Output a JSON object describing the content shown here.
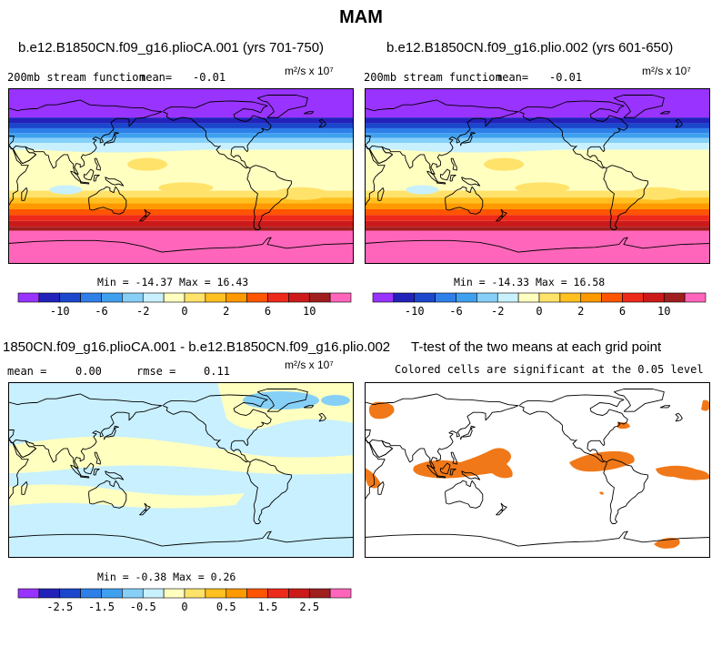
{
  "title": "MAM",
  "chart_data": [
    {
      "type": "heatmap",
      "title": "b.e12.B1850CN.f09_g16.plioCA.001 (yrs 701-750)",
      "variable": "200mb stream function",
      "mean_label": "mean=",
      "mean_value": "-0.01",
      "units": "m²/s x 10⁷",
      "min_max": "Min = -14.37 Max =  16.43",
      "colorbar_ticks": [
        "-10",
        "-6",
        "-2",
        "0",
        "2",
        "6",
        "10"
      ],
      "colors": [
        "#9933ff",
        "#2222bb",
        "#1a47cc",
        "#2f7fe8",
        "#40a0f0",
        "#86d0f8",
        "#c8f0ff",
        "#ffffc0",
        "#ffe26a",
        "#ffc020",
        "#ff9900",
        "#ff5500",
        "#ee2a1a",
        "#cc1a1a",
        "#a01e1e",
        "#ff66bb"
      ],
      "pattern": "climatology"
    },
    {
      "type": "heatmap",
      "title": "b.e12.B1850CN.f09_g16.plio.002 (yrs 601-650)",
      "variable": "200mb stream function",
      "mean_label": "mean=",
      "mean_value": "-0.01",
      "units": "m²/s x 10⁷",
      "min_max": "Min = -14.33 Max =  16.58",
      "colorbar_ticks": [
        "-10",
        "-6",
        "-2",
        "0",
        "2",
        "6",
        "10"
      ],
      "colors": [
        "#9933ff",
        "#2222bb",
        "#1a47cc",
        "#2f7fe8",
        "#40a0f0",
        "#86d0f8",
        "#c8f0ff",
        "#ffffc0",
        "#ffe26a",
        "#ffc020",
        "#ff9900",
        "#ff5500",
        "#ee2a1a",
        "#cc1a1a",
        "#a01e1e",
        "#ff66bb"
      ],
      "pattern": "climatology"
    },
    {
      "type": "heatmap",
      "title": "1850CN.f09_g16.plioCA.001 - b.e12.B1850CN.f09_g16.plio.002",
      "mean_label": "mean =",
      "mean_value": "0.00",
      "rmse_label": "rmse =",
      "rmse_value": "0.11",
      "units": "m²/s x 10⁷",
      "min_max": "Min = -0.38 Max =  0.26",
      "colorbar_ticks": [
        "-2.5",
        "-1.5",
        "-0.5",
        "0",
        "0.5",
        "1.5",
        "2.5"
      ],
      "colors": [
        "#9933ff",
        "#2222bb",
        "#1a47cc",
        "#2f7fe8",
        "#40a0f0",
        "#86d0f8",
        "#c8f0ff",
        "#ffffc0",
        "#ffe26a",
        "#ffc020",
        "#ff9900",
        "#ff5500",
        "#ee2a1a",
        "#cc1a1a",
        "#a01e1e",
        "#ff66bb"
      ],
      "pattern": "difference"
    },
    {
      "type": "heatmap",
      "title": "T-test of the two means at each grid point",
      "subtitle": "Colored cells are significant at the 0.05 level",
      "significance_color": "#f07818",
      "pattern": "ttest"
    }
  ]
}
